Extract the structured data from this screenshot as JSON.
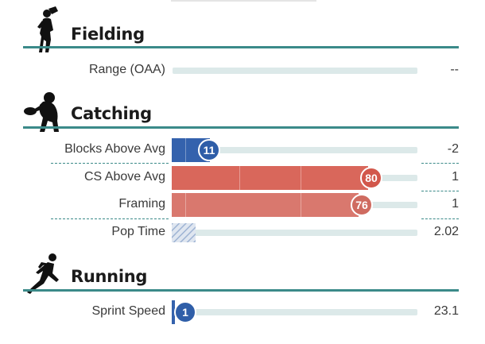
{
  "colors": {
    "accent": "#3b8a89",
    "blue": "#2f5ea8",
    "red_dark": "#d9675b",
    "red_light": "#d9786e",
    "track": "#dce9e9"
  },
  "sections": {
    "fielding": {
      "title": "Fielding",
      "icon": "fielder-silhouette-icon",
      "metrics": [
        {
          "label": "Range (OAA)",
          "value": "--"
        }
      ]
    },
    "catching": {
      "title": "Catching",
      "icon": "catcher-silhouette-icon",
      "metrics": [
        {
          "label": "Blocks Above Avg",
          "percentile": "11",
          "value": "-2"
        },
        {
          "label": "CS Above Avg",
          "percentile": "80",
          "value": "1"
        },
        {
          "label": "Framing",
          "percentile": "76",
          "value": "1"
        },
        {
          "label": "Pop Time",
          "value": "2.02"
        }
      ]
    },
    "running": {
      "title": "Running",
      "icon": "runner-silhouette-icon",
      "metrics": [
        {
          "label": "Sprint Speed",
          "percentile": "1",
          "value": "23.1"
        }
      ]
    }
  }
}
